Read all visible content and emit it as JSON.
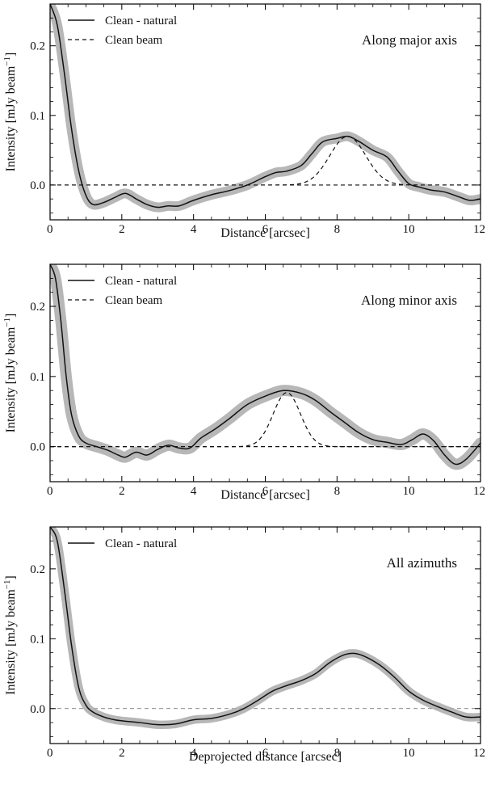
{
  "colors": {
    "line": "#111111",
    "band": "#aaaaaa",
    "axis": "#000000"
  },
  "chart_data": [
    {
      "type": "line",
      "annotation": "Along major axis",
      "xlabel": "Distance [arcsec]",
      "ylabel": "Intensity [mJy beam",
      "ylabel_sup": "−1",
      "ylabel_close": "]",
      "xlim": [
        0,
        12
      ],
      "ylim": [
        -0.05,
        0.26
      ],
      "xticks": [
        0,
        2,
        4,
        6,
        8,
        10,
        12
      ],
      "yticks": [
        0.0,
        0.1,
        0.2
      ],
      "ytick_labels": [
        "0.0",
        "0.1",
        "0.2"
      ],
      "legend": [
        {
          "label": "Clean - natural",
          "style": "solid"
        },
        {
          "label": "Clean beam",
          "style": "dashed"
        }
      ],
      "zero_line": true,
      "band_halfwidth": 0.007,
      "series": [
        {
          "style": "solid",
          "x": [
            0,
            0.2,
            0.4,
            0.6,
            0.8,
            1.0,
            1.2,
            1.5,
            1.8,
            2.1,
            2.4,
            2.7,
            3.0,
            3.3,
            3.6,
            4.0,
            4.5,
            5.0,
            5.5,
            6.0,
            6.3,
            6.6,
            7.0,
            7.3,
            7.6,
            8.0,
            8.3,
            8.6,
            9.0,
            9.4,
            9.7,
            10.0,
            10.3,
            10.6,
            11.0,
            11.4,
            11.7,
            12.0
          ],
          "y": [
            0.26,
            0.23,
            0.16,
            0.08,
            0.02,
            -0.015,
            -0.028,
            -0.025,
            -0.018,
            -0.012,
            -0.02,
            -0.028,
            -0.032,
            -0.03,
            -0.03,
            -0.022,
            -0.014,
            -0.008,
            0.0,
            0.012,
            0.018,
            0.02,
            0.028,
            0.045,
            0.062,
            0.067,
            0.07,
            0.063,
            0.05,
            0.04,
            0.02,
            0.002,
            -0.003,
            -0.007,
            -0.01,
            -0.017,
            -0.022,
            -0.02
          ]
        },
        {
          "style": "dashed",
          "beam": {
            "center": 8.3,
            "amp": 0.07,
            "sigma": 0.5
          }
        }
      ]
    },
    {
      "type": "line",
      "annotation": "Along minor axis",
      "xlabel": "Distance [arcsec]",
      "ylabel": "Intensity [mJy beam",
      "ylabel_sup": "−1",
      "ylabel_close": "]",
      "xlim": [
        0,
        12
      ],
      "ylim": [
        -0.05,
        0.26
      ],
      "xticks": [
        0,
        2,
        4,
        6,
        8,
        10,
        12
      ],
      "yticks": [
        0.0,
        0.1,
        0.2
      ],
      "ytick_labels": [
        "0.0",
        "0.1",
        "0.2"
      ],
      "legend": [
        {
          "label": "Clean - natural",
          "style": "solid"
        },
        {
          "label": "Clean beam",
          "style": "dashed"
        }
      ],
      "zero_line": true,
      "band_halfwidth": 0.008,
      "series": [
        {
          "style": "solid",
          "x": [
            0,
            0.15,
            0.3,
            0.45,
            0.6,
            0.8,
            1.0,
            1.3,
            1.6,
            1.9,
            2.1,
            2.4,
            2.7,
            3.0,
            3.3,
            3.6,
            3.9,
            4.2,
            4.6,
            5.0,
            5.5,
            6.0,
            6.5,
            7.0,
            7.4,
            7.8,
            8.2,
            8.6,
            9.0,
            9.4,
            9.8,
            10.1,
            10.4,
            10.7,
            11.0,
            11.3,
            11.6,
            12.0
          ],
          "y": [
            0.26,
            0.24,
            0.18,
            0.1,
            0.045,
            0.015,
            0.005,
            0.0,
            -0.005,
            -0.012,
            -0.015,
            -0.008,
            -0.012,
            -0.004,
            0.002,
            -0.002,
            -0.002,
            0.012,
            0.025,
            0.04,
            0.06,
            0.072,
            0.08,
            0.076,
            0.066,
            0.05,
            0.035,
            0.02,
            0.01,
            0.006,
            0.003,
            0.01,
            0.018,
            0.008,
            -0.012,
            -0.025,
            -0.018,
            0.005
          ]
        },
        {
          "style": "dashed",
          "beam": {
            "center": 6.6,
            "amp": 0.077,
            "sigma": 0.38
          }
        }
      ]
    },
    {
      "type": "line",
      "annotation": "All azimuths",
      "xlabel": "Deprojected distance [arcsec]",
      "ylabel": "Intensity [mJy beam",
      "ylabel_sup": "−1",
      "ylabel_close": "]",
      "xlim": [
        0,
        12
      ],
      "ylim": [
        -0.05,
        0.26
      ],
      "xticks": [
        0,
        2,
        4,
        6,
        8,
        10,
        12
      ],
      "yticks": [
        0.0,
        0.1,
        0.2
      ],
      "ytick_labels": [
        "0.0",
        "0.1",
        "0.2"
      ],
      "legend": [
        {
          "label": "Clean - natural",
          "style": "solid"
        }
      ],
      "zero_line": true,
      "zero_line_style": "thin",
      "band_halfwidth": 0.006,
      "series": [
        {
          "style": "solid",
          "x": [
            0,
            0.2,
            0.4,
            0.6,
            0.8,
            1.0,
            1.2,
            1.5,
            1.8,
            2.1,
            2.5,
            3.0,
            3.5,
            4.0,
            4.5,
            5.0,
            5.4,
            5.8,
            6.2,
            6.6,
            7.0,
            7.4,
            7.8,
            8.2,
            8.5,
            8.8,
            9.2,
            9.6,
            10.0,
            10.4,
            10.8,
            11.2,
            11.6,
            12.0
          ],
          "y": [
            0.26,
            0.24,
            0.17,
            0.09,
            0.03,
            0.005,
            -0.005,
            -0.012,
            -0.016,
            -0.018,
            -0.02,
            -0.023,
            -0.022,
            -0.016,
            -0.014,
            -0.008,
            0.0,
            0.012,
            0.025,
            0.033,
            0.04,
            0.05,
            0.066,
            0.077,
            0.079,
            0.074,
            0.062,
            0.045,
            0.025,
            0.012,
            0.003,
            -0.005,
            -0.012,
            -0.012
          ]
        }
      ]
    }
  ]
}
